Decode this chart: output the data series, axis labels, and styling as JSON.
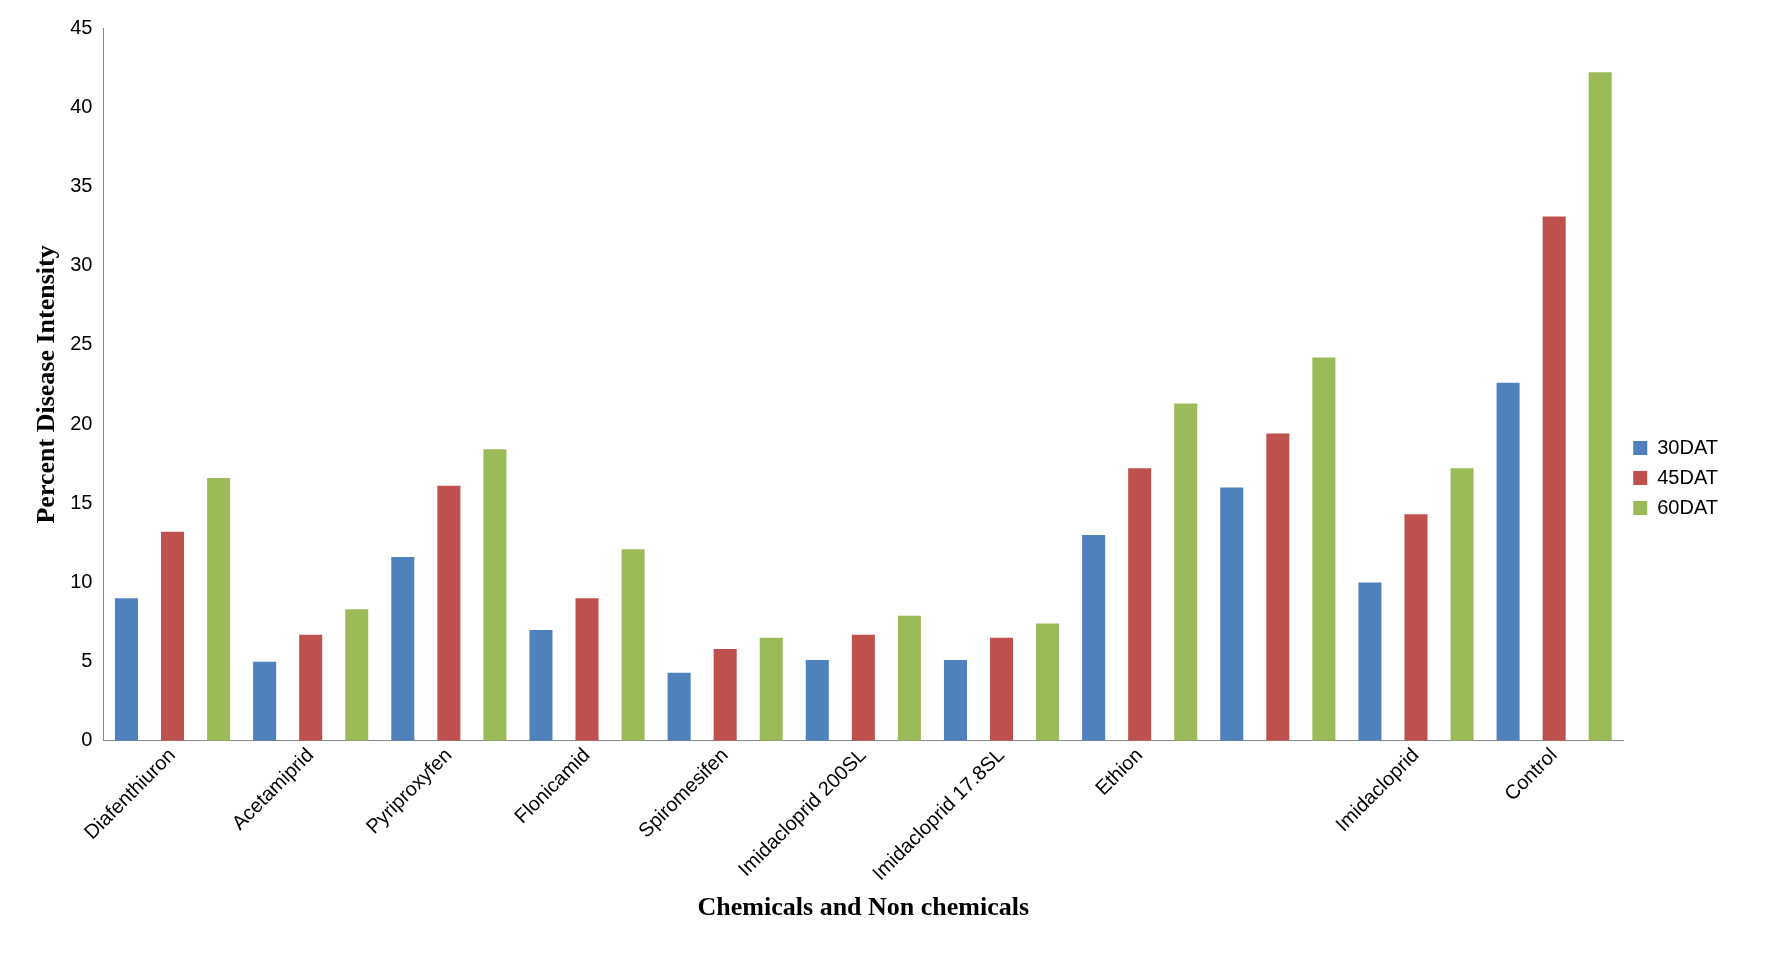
{
  "chart_data": {
    "type": "bar",
    "xlabel": "Chemicals and Non chemicals",
    "ylabel": "Percent Disease Intensity",
    "categories": [
      "Diafenthiuron",
      "Acetamiprid",
      "Pyriproxyfen",
      "Flonicamid",
      "Spiromesifen",
      "Imidacloprid 200SL",
      "Imidacloprid 17.8SL",
      "Ethion",
      null,
      "Imidacloprid",
      "Control"
    ],
    "series": [
      {
        "name": "30DAT",
        "color": "#4f81bd",
        "values": [
          9.0,
          5.0,
          11.6,
          7.0,
          4.3,
          5.1,
          5.1,
          13.0,
          16.0,
          10.0,
          22.6
        ]
      },
      {
        "name": "45DAT",
        "color": "#c0504d",
        "values": [
          13.2,
          6.7,
          16.1,
          9.0,
          5.8,
          6.7,
          6.5,
          17.2,
          19.4,
          14.3,
          33.1
        ]
      },
      {
        "name": "60DAT",
        "color": "#9bbb59",
        "values": [
          16.6,
          8.3,
          18.4,
          12.1,
          6.5,
          7.9,
          7.4,
          21.3,
          24.2,
          17.2,
          42.2
        ]
      }
    ],
    "ylim": [
      0,
      45
    ],
    "yticks": [
      0,
      5,
      10,
      15,
      20,
      25,
      30,
      35,
      40,
      45
    ],
    "grid": false,
    "legend": "right"
  }
}
